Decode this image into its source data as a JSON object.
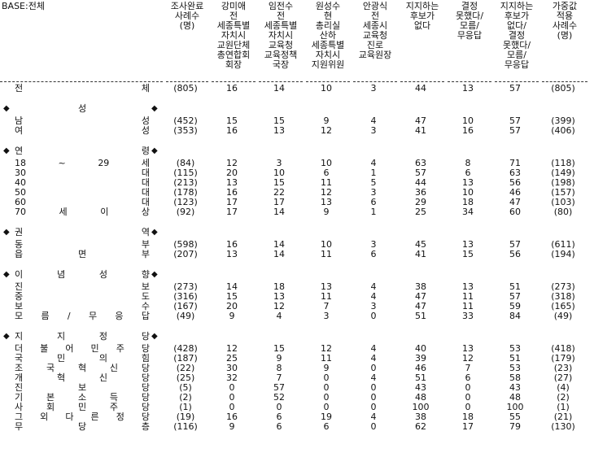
{
  "header": {
    "base": "BASE:전체",
    "columns": [
      [
        "조사완료",
        "사례수",
        "(명)"
      ],
      [
        "강미애",
        "전",
        "세종특별",
        "자치시",
        "교원단체",
        "총연합회",
        "회장"
      ],
      [
        "임전수",
        "전",
        "세종특별",
        "자치시",
        "교육청",
        "교육정책",
        "국장"
      ],
      [
        "원성수",
        "현",
        "총리실",
        "산하",
        "세종특별",
        "자치시",
        "지원위원"
      ],
      [
        "안광식",
        "전",
        "세종시",
        "교육청",
        "진로",
        "교육원장"
      ],
      [
        "지지하는",
        "후보가",
        "없다"
      ],
      [
        "결정",
        "못했다/",
        "모름/",
        "무응답"
      ],
      [
        "지지하는",
        "후보가",
        "없다/",
        "결정",
        "못했다/",
        "모름/",
        "무응답"
      ],
      [
        "가중값",
        "적용",
        "사례수",
        "(명)"
      ]
    ]
  },
  "total": {
    "label": "전체",
    "values": [
      "(805)",
      16,
      14,
      10,
      3,
      44,
      13,
      57,
      "(805)"
    ]
  },
  "groups": [
    {
      "label": "성",
      "rows": [
        {
          "label": "남성",
          "values": [
            "(452)",
            15,
            15,
            9,
            4,
            47,
            10,
            57,
            "(399)"
          ]
        },
        {
          "label": "여성",
          "values": [
            "(353)",
            16,
            13,
            12,
            3,
            41,
            16,
            57,
            "(406)"
          ]
        }
      ]
    },
    {
      "label": "연령",
      "rows": [
        {
          "label": "18~29세",
          "values": [
            "(84)",
            12,
            3,
            10,
            4,
            63,
            8,
            71,
            "(118)"
          ]
        },
        {
          "label": "30대",
          "values": [
            "(115)",
            20,
            10,
            6,
            1,
            57,
            6,
            63,
            "(149)"
          ]
        },
        {
          "label": "40대",
          "values": [
            "(213)",
            13,
            15,
            11,
            5,
            44,
            13,
            56,
            "(198)"
          ]
        },
        {
          "label": "50대",
          "values": [
            "(178)",
            16,
            22,
            12,
            3,
            36,
            10,
            46,
            "(157)"
          ]
        },
        {
          "label": "60대",
          "values": [
            "(123)",
            17,
            17,
            13,
            6,
            29,
            18,
            47,
            "(103)"
          ]
        },
        {
          "label": "70세이상",
          "values": [
            "(92)",
            17,
            14,
            9,
            1,
            25,
            34,
            60,
            "(80)"
          ]
        }
      ]
    },
    {
      "label": "권역",
      "rows": [
        {
          "label": "동부",
          "values": [
            "(598)",
            16,
            14,
            10,
            3,
            45,
            13,
            57,
            "(611)"
          ]
        },
        {
          "label": "읍면부",
          "values": [
            "(207)",
            13,
            14,
            11,
            6,
            41,
            15,
            56,
            "(194)"
          ]
        }
      ]
    },
    {
      "label": "이념성향",
      "rows": [
        {
          "label": "진보",
          "values": [
            "(273)",
            14,
            18,
            13,
            4,
            38,
            13,
            51,
            "(273)"
          ]
        },
        {
          "label": "중도",
          "values": [
            "(316)",
            15,
            13,
            11,
            4,
            47,
            11,
            57,
            "(318)"
          ]
        },
        {
          "label": "보수",
          "values": [
            "(167)",
            20,
            12,
            7,
            3,
            47,
            11,
            59,
            "(165)"
          ]
        },
        {
          "label": "모름/무응답",
          "values": [
            "(49)",
            9,
            4,
            3,
            0,
            51,
            33,
            84,
            "(49)"
          ]
        }
      ]
    },
    {
      "label": "지지정당",
      "rows": [
        {
          "label": "더불어민주당",
          "values": [
            "(428)",
            12,
            15,
            12,
            4,
            40,
            13,
            53,
            "(418)"
          ]
        },
        {
          "label": "국민의힘",
          "values": [
            "(187)",
            25,
            9,
            11,
            4,
            39,
            12,
            51,
            "(179)"
          ]
        },
        {
          "label": "조국혁신당",
          "values": [
            "(22)",
            30,
            8,
            9,
            0,
            46,
            7,
            53,
            "(23)"
          ]
        },
        {
          "label": "개혁신당",
          "values": [
            "(25)",
            32,
            7,
            0,
            4,
            51,
            6,
            58,
            "(27)"
          ]
        },
        {
          "label": "진보당",
          "values": [
            "(5)",
            0,
            57,
            0,
            0,
            43,
            0,
            43,
            "(4)"
          ]
        },
        {
          "label": "기본소득당",
          "values": [
            "(2)",
            0,
            52,
            0,
            0,
            48,
            0,
            48,
            "(2)"
          ]
        },
        {
          "label": "사회민주당",
          "values": [
            "(1)",
            0,
            0,
            0,
            0,
            100,
            0,
            100,
            "(1)"
          ]
        },
        {
          "label": "그외다른정당",
          "values": [
            "(19)",
            16,
            6,
            19,
            4,
            38,
            18,
            55,
            "(21)"
          ]
        },
        {
          "label": "무당층",
          "values": [
            "(116)",
            9,
            6,
            6,
            0,
            62,
            17,
            79,
            "(130)"
          ]
        }
      ]
    }
  ]
}
